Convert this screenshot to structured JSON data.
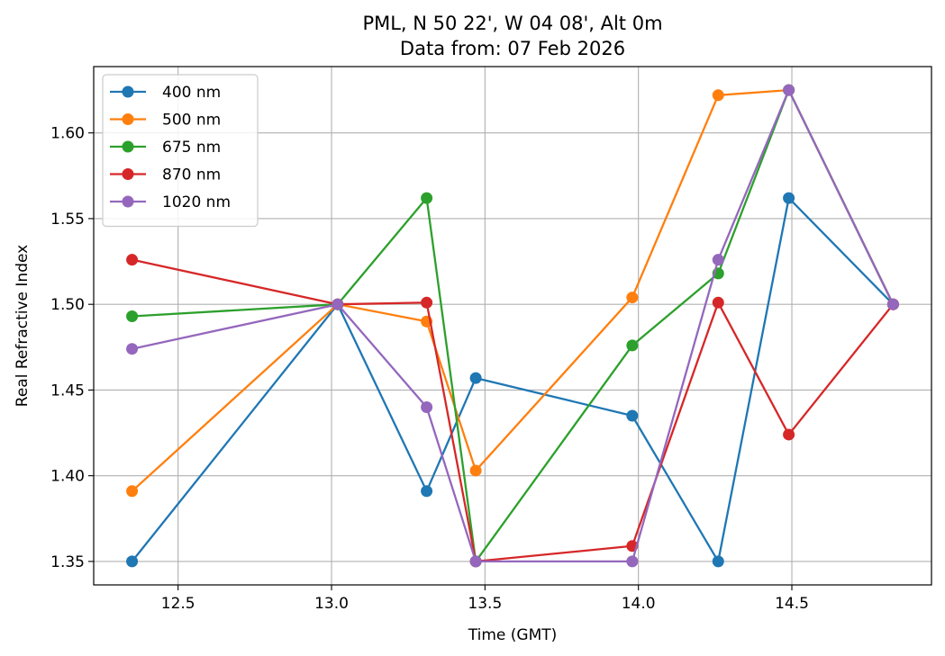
{
  "chart_data": {
    "type": "line",
    "title": [
      "PML, N 50 22', W 04 08', Alt 0m",
      "Data from: 07 Feb 2026"
    ],
    "xlabel": "Time (GMT)",
    "ylabel": "Real Refractive Index",
    "xlim": [
      12.225,
      14.955
    ],
    "ylim": [
      1.3363,
      1.6387
    ],
    "xticks": [
      12.5,
      13.0,
      13.5,
      14.0,
      14.5
    ],
    "xtick_labels": [
      "12.5",
      "13.0",
      "13.5",
      "14.0",
      "14.5"
    ],
    "yticks": [
      1.35,
      1.4,
      1.45,
      1.5,
      1.55,
      1.6
    ],
    "ytick_labels": [
      "1.35",
      "1.40",
      "1.45",
      "1.50",
      "1.55",
      "1.60"
    ],
    "grid": true,
    "legend_position": "top-left",
    "x": [
      12.35,
      13.02,
      13.31,
      13.47,
      13.98,
      14.26,
      14.49,
      14.83
    ],
    "series": [
      {
        "name": "400 nm",
        "color": "#1f77b4",
        "values": [
          1.35,
          1.5,
          1.391,
          1.457,
          1.435,
          1.35,
          1.562,
          1.5
        ]
      },
      {
        "name": "500 nm",
        "color": "#ff7f0e",
        "values": [
          1.391,
          1.5,
          1.49,
          1.403,
          1.504,
          1.622,
          1.625,
          1.5
        ]
      },
      {
        "name": "675 nm",
        "color": "#2ca02c",
        "values": [
          1.493,
          1.5,
          1.562,
          1.35,
          1.476,
          1.518,
          1.625,
          1.5
        ]
      },
      {
        "name": "870 nm",
        "color": "#d62728",
        "values": [
          1.526,
          1.5,
          1.501,
          1.35,
          1.359,
          1.501,
          1.424,
          1.5
        ]
      },
      {
        "name": "1020 nm",
        "color": "#9467bd",
        "values": [
          1.474,
          1.5,
          1.44,
          1.35,
          1.35,
          1.526,
          1.625,
          1.5
        ]
      }
    ]
  }
}
